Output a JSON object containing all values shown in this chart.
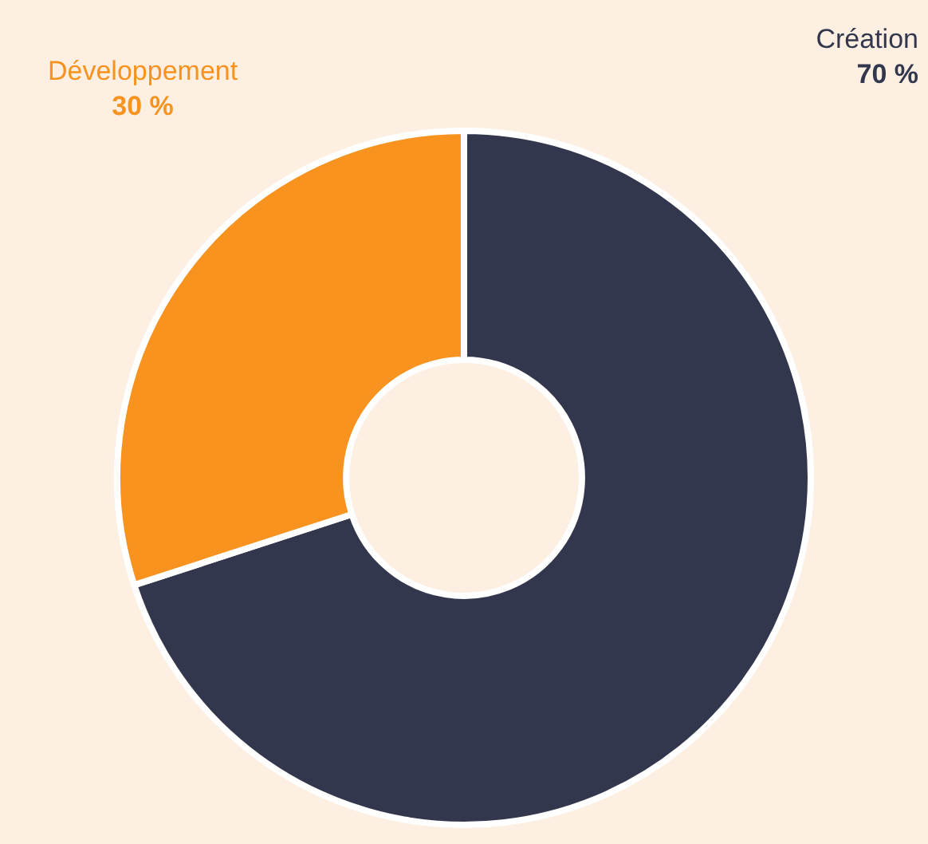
{
  "chart_data": {
    "type": "donut",
    "categories": [
      "Création",
      "Développement"
    ],
    "values": [
      70,
      30
    ],
    "colors": [
      "#33374d",
      "#f7931e"
    ],
    "value_labels": [
      "70 %",
      "30 %"
    ],
    "legend": false
  }
}
